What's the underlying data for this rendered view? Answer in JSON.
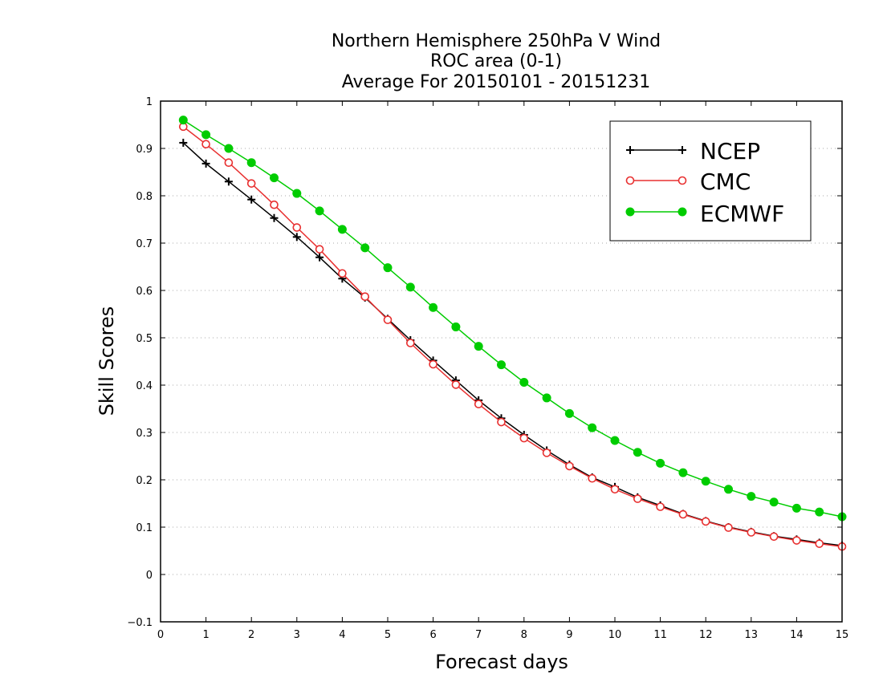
{
  "chart_data": {
    "type": "line",
    "title_lines": [
      "Northern Hemisphere 250hPa V Wind",
      "ROC area (0-1)",
      "Average For 20150101 - 20151231"
    ],
    "xlabel": "Forecast days",
    "ylabel": "Skill Scores",
    "xlim": [
      0,
      15
    ],
    "ylim": [
      -0.1,
      1
    ],
    "xticks": [
      "0",
      "1",
      "2",
      "3",
      "4",
      "5",
      "6",
      "7",
      "8",
      "9",
      "10",
      "11",
      "12",
      "13",
      "14",
      "15"
    ],
    "yticks": [
      "−0.1",
      "0",
      "0.1",
      "0.2",
      "0.3",
      "0.4",
      "0.5",
      "0.6",
      "0.7",
      "0.8",
      "0.9",
      "1"
    ],
    "grid": "horizontal dotted",
    "legend_position": "top-right",
    "x": [
      0.5,
      1,
      1.5,
      2,
      2.5,
      3,
      3.5,
      4,
      4.5,
      5,
      5.5,
      6,
      6.5,
      7,
      7.5,
      8,
      8.5,
      9,
      9.5,
      10,
      10.5,
      11,
      11.5,
      12,
      12.5,
      13,
      13.5,
      14,
      14.5,
      15
    ],
    "series": [
      {
        "name": "NCEP",
        "color": "#000000",
        "marker": "plus",
        "values": [
          0.912,
          0.868,
          0.83,
          0.792,
          0.753,
          0.713,
          0.67,
          0.625,
          0.585,
          0.54,
          0.495,
          0.452,
          0.41,
          0.368,
          0.33,
          0.295,
          0.262,
          0.232,
          0.205,
          0.185,
          0.163,
          0.146,
          0.128,
          0.113,
          0.1,
          0.09,
          0.081,
          0.074,
          0.067,
          0.061
        ]
      },
      {
        "name": "CMC",
        "color": "#e83030",
        "marker": "open-circle",
        "values": [
          0.946,
          0.909,
          0.87,
          0.826,
          0.781,
          0.733,
          0.687,
          0.636,
          0.587,
          0.538,
          0.489,
          0.444,
          0.401,
          0.36,
          0.322,
          0.288,
          0.257,
          0.229,
          0.203,
          0.18,
          0.16,
          0.143,
          0.127,
          0.112,
          0.099,
          0.089,
          0.08,
          0.072,
          0.065,
          0.059
        ]
      },
      {
        "name": "ECMWF",
        "color": "#00cc00",
        "marker": "filled-circle",
        "values": [
          0.96,
          0.929,
          0.9,
          0.87,
          0.838,
          0.805,
          0.768,
          0.729,
          0.69,
          0.648,
          0.607,
          0.564,
          0.523,
          0.482,
          0.443,
          0.406,
          0.373,
          0.34,
          0.31,
          0.283,
          0.258,
          0.235,
          0.215,
          0.197,
          0.18,
          0.165,
          0.153,
          0.14,
          0.132,
          0.122
        ]
      }
    ]
  }
}
